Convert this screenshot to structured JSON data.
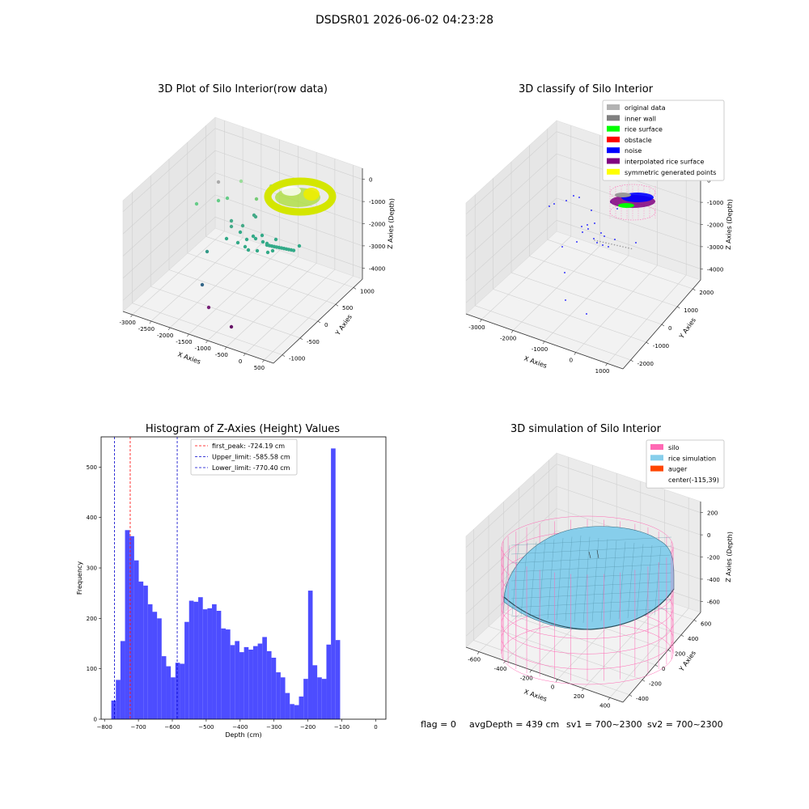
{
  "figure_title": "DSDSR01 2026-06-02 04:23:28",
  "footer": {
    "flag": "flag = 0",
    "avg_depth": "avgDepth = 439 cm",
    "sv1": "sv1 = 700~2300",
    "sv2": "sv2 = 700~2300"
  },
  "chart_data": [
    {
      "type": "scatter",
      "title": "3D Plot of Silo Interior(row data)",
      "xlabel": "X Axies",
      "ylabel": "Y Axies",
      "zlabel": "Z Axies (Depth)",
      "x_ticks": [
        "-3000",
        "-2500",
        "-2000",
        "-1500",
        "-1000",
        "-500",
        "0",
        "500"
      ],
      "y_ticks": [
        "-1000",
        "-500",
        "0",
        "500",
        "1000"
      ],
      "z_ticks": [
        "0",
        "-1000",
        "-2000",
        "-3000",
        "-4000"
      ]
    },
    {
      "type": "scatter",
      "title": "3D classify of Silo Interior",
      "xlabel": "X Axies",
      "ylabel": "Y Axies",
      "zlabel": "Z Axies (Depth)",
      "x_ticks": [
        "-3000",
        "-2000",
        "-1000",
        "0",
        "1000"
      ],
      "y_ticks": [
        "-2000",
        "-1000",
        "0",
        "1000",
        "2000"
      ],
      "z_ticks": [
        "0",
        "-1000",
        "-2000",
        "-3000",
        "-4000"
      ],
      "legend": [
        {
          "label": "original data",
          "color": "#b3b3b3"
        },
        {
          "label": "inner wall",
          "color": "#808080"
        },
        {
          "label": "rice surface",
          "color": "#00ff00"
        },
        {
          "label": "obstacle",
          "color": "#ff0000"
        },
        {
          "label": "noise",
          "color": "#0000ff"
        },
        {
          "label": "interpolated rice surface",
          "color": "#800080"
        },
        {
          "label": "symmetric generated points",
          "color": "#ffff00"
        }
      ],
      "legend_position": "top-right"
    },
    {
      "type": "bar",
      "title": "Histogram of Z-Axies (Height) Values",
      "xlabel": "Depth (cm)",
      "ylabel": "Frequency",
      "xlim": [
        -810,
        30
      ],
      "ylim": [
        0,
        560
      ],
      "x_ticks": [
        -800,
        -700,
        -600,
        -500,
        -400,
        -300,
        -200,
        -100,
        0
      ],
      "y_ticks": [
        0,
        100,
        200,
        300,
        400,
        500
      ],
      "bin_start": -780,
      "bin_width": 13.5,
      "values": [
        37,
        78,
        155,
        375,
        363,
        315,
        273,
        265,
        228,
        213,
        200,
        125,
        105,
        83,
        112,
        110,
        193,
        235,
        233,
        242,
        218,
        220,
        228,
        215,
        180,
        178,
        147,
        155,
        133,
        143,
        138,
        145,
        150,
        163,
        135,
        122,
        93,
        83,
        52,
        30,
        28,
        45,
        80,
        255,
        107,
        83,
        80,
        148,
        537,
        157
      ],
      "bar_color": "#4d4dff",
      "lines": [
        {
          "label": "first_peak: -724.19 cm",
          "x": -724.19,
          "color": "#ff0000"
        },
        {
          "label": "Upper_limit: -585.58 cm",
          "x": -585.58,
          "color": "#0000cc"
        },
        {
          "label": "Lower_limit: -770.40 cm",
          "x": -770.4,
          "color": "#0000cc"
        }
      ],
      "legend_position": "top-center"
    },
    {
      "type": "area",
      "title": "3D simulation of Silo Interior",
      "xlabel": "X Axies",
      "ylabel": "Y Axies",
      "zlabel": "Z Axies (Depth)",
      "x_ticks": [
        "-600",
        "-400",
        "-200",
        "0",
        "200",
        "400"
      ],
      "y_ticks": [
        "-400",
        "-200",
        "0",
        "200",
        "400",
        "600"
      ],
      "z_ticks": [
        "200",
        "0",
        "-200",
        "-400",
        "-600"
      ],
      "legend": [
        {
          "label": "silo",
          "color": "#ff69b4"
        },
        {
          "label": "rice simulation",
          "color": "#87ceeb"
        },
        {
          "label": "auger",
          "color": "#ff4500"
        },
        {
          "label": "center(-115,39)",
          "color": ""
        }
      ],
      "legend_position": "top-right"
    }
  ]
}
